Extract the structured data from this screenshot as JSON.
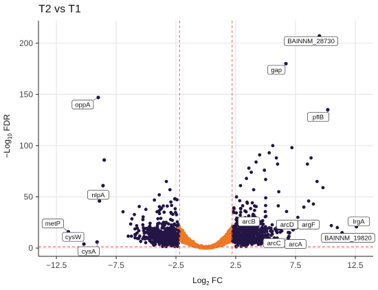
{
  "chart_data": {
    "type": "scatter",
    "title": "T2 vs T1",
    "xlabel": {
      "prefix": "Log",
      "sub": "2",
      "suffix": " FC"
    },
    "ylabel": {
      "prefix": "−Log",
      "sub": "10",
      "suffix": " FDR"
    },
    "xlim": [
      -14,
      14
    ],
    "ylim": [
      -8,
      222
    ],
    "xticks": [
      -12.5,
      -7.5,
      -2.5,
      2.5,
      7.5,
      12.5
    ],
    "xtick_labels": [
      "−12.5",
      "−7.5",
      "−2.5",
      "2.5",
      "7.5",
      "12.5"
    ],
    "yticks": [
      0,
      50,
      100,
      150,
      200
    ],
    "ytick_labels": [
      "0",
      "50",
      "100",
      "150",
      "200"
    ],
    "grid": true,
    "thresholds": {
      "log2fc": [
        -2.2,
        2.2
      ],
      "fdr_line": 1.3
    },
    "colors": {
      "significant": "#231545",
      "not_significant": "#f07a22",
      "threshold_line": "#e05252",
      "grid": "#e6e6e6",
      "axis": "#222222"
    },
    "series": [
      {
        "key": "labeled",
        "points": [
          {
            "x": -9.0,
            "y": 147
          },
          {
            "x": -8.5,
            "y": 86
          },
          {
            "x": -8.6,
            "y": 61
          },
          {
            "x": -11.5,
            "y": 16
          },
          {
            "x": -10.5,
            "y": 9
          },
          {
            "x": -10.2,
            "y": 4
          },
          {
            "x": -9.1,
            "y": 6
          },
          {
            "x": -8.9,
            "y": 46
          },
          {
            "x": 9.5,
            "y": 207
          },
          {
            "x": 6.7,
            "y": 180
          },
          {
            "x": 10.2,
            "y": 135
          },
          {
            "x": 4.6,
            "y": 24
          },
          {
            "x": 6.2,
            "y": 19
          },
          {
            "x": 7.3,
            "y": 18
          },
          {
            "x": 7.0,
            "y": 15
          },
          {
            "x": 6.9,
            "y": 10
          },
          {
            "x": 12.6,
            "y": 21
          },
          {
            "x": 11.4,
            "y": 15
          }
        ]
      }
    ],
    "point_labels": [
      {
        "gene": "oppA",
        "x": -9.0,
        "y": 147,
        "lx": -10.3,
        "ly": 140
      },
      {
        "gene": "nlpA",
        "x": -8.9,
        "y": 46,
        "lx": -9.0,
        "ly": 52
      },
      {
        "gene": "metP",
        "x": -11.5,
        "y": 16,
        "lx": -12.8,
        "ly": 24
      },
      {
        "gene": "cysW",
        "x": -10.5,
        "y": 9,
        "lx": -11.1,
        "ly": 11
      },
      {
        "gene": "cysA",
        "x": -9.1,
        "y": 6,
        "lx": -9.8,
        "ly": -3
      },
      {
        "gene": "BAINNM_28730",
        "x": 9.5,
        "y": 207,
        "lx": 8.8,
        "ly": 202
      },
      {
        "gene": "gap",
        "x": 6.7,
        "y": 180,
        "lx": 5.9,
        "ly": 174
      },
      {
        "gene": "pflB",
        "x": 10.2,
        "y": 135,
        "lx": 9.4,
        "ly": 128
      },
      {
        "gene": "arcB",
        "x": 4.6,
        "y": 24,
        "lx": 3.6,
        "ly": 26
      },
      {
        "gene": "arcD",
        "x": 6.2,
        "y": 19,
        "lx": 6.8,
        "ly": 23
      },
      {
        "gene": "argF",
        "x": 7.3,
        "y": 18,
        "lx": 8.6,
        "ly": 23
      },
      {
        "gene": "arcC",
        "x": 6.9,
        "y": 10,
        "lx": 5.7,
        "ly": 5
      },
      {
        "gene": "arcA",
        "x": 7.0,
        "y": 15,
        "lx": 7.5,
        "ly": 4
      },
      {
        "gene": "lrgA",
        "x": 12.6,
        "y": 21,
        "lx": 12.8,
        "ly": 26
      },
      {
        "gene": "BAINNM_19820",
        "x": 11.4,
        "y": 15,
        "lx": 11.9,
        "ly": 10
      }
    ],
    "point_counts_estimated": {
      "significant_down": 380,
      "significant_up": 520,
      "not_significant": 900
    }
  }
}
